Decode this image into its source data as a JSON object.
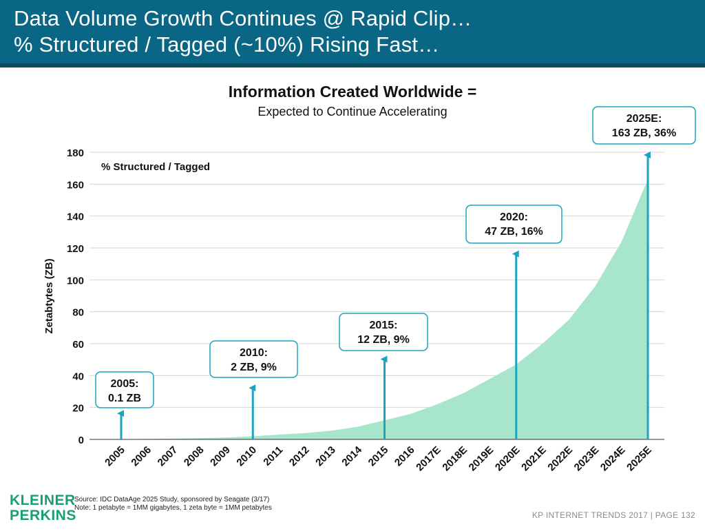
{
  "header": {
    "line1": "Data Volume Growth Continues @ Rapid Clip…",
    "line2": "% Structured / Tagged (~10%) Rising Fast…"
  },
  "colors": {
    "header_bg": "#0a6685",
    "area_fill": "#a8e6cc",
    "arrow": "#1aa5bd",
    "logo": "#1aa06f"
  },
  "chart_data": {
    "type": "area",
    "title": "Information Created Worldwide =",
    "subtitle": "Expected to Continue Accelerating",
    "ylabel": "Zetabtytes (ZB)",
    "inner_label": "% Structured / Tagged",
    "ylim": [
      0,
      180
    ],
    "yticks": [
      0,
      20,
      40,
      60,
      80,
      100,
      120,
      140,
      160,
      180
    ],
    "grid": true,
    "categories": [
      "2005",
      "2006",
      "2007",
      "2008",
      "2009",
      "2010",
      "2011",
      "2012",
      "2013",
      "2014",
      "2015",
      "2016",
      "2017E",
      "2018E",
      "2019E",
      "2020E",
      "2021E",
      "2022E",
      "2023E",
      "2024E",
      "2025E"
    ],
    "values": [
      0.1,
      0.3,
      0.5,
      0.8,
      1.2,
      2,
      3,
      4,
      5.5,
      8,
      12,
      16,
      22,
      29,
      38,
      47,
      60,
      75,
      96,
      124,
      163
    ],
    "annotations": [
      {
        "category": "2005",
        "line1": "2005:",
        "line2": "0.1 ZB",
        "arrow_top": 18
      },
      {
        "category": "2010",
        "line1": "2010:",
        "line2": "2 ZB, 9%",
        "arrow_top": 34
      },
      {
        "category": "2015",
        "line1": "2015:",
        "line2": "12 ZB, 9%",
        "arrow_top": 52
      },
      {
        "category": "2020E",
        "line1": "2020:",
        "line2": "47 ZB, 16%",
        "arrow_top": 118
      },
      {
        "category": "2025E",
        "line1": "2025E:",
        "line2": "163 ZB, 36%",
        "arrow_top": 180
      }
    ]
  },
  "source": {
    "line1": "Source: IDC DataAge 2025 Study, sponsored by Seagate (3/17)",
    "line2": "Note: 1 petabyte = 1MM gigabytes, 1 zeta byte = 1MM petabytes"
  },
  "logo": {
    "line1": "KLEINER",
    "line2": "PERKINS"
  },
  "footer": "KP INTERNET TRENDS 2017   |   PAGE 132"
}
